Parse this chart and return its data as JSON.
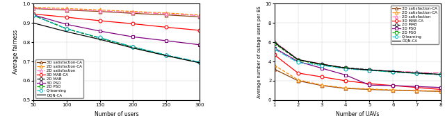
{
  "left": {
    "xlabel": "Number of users",
    "ylabel": "Average fairness",
    "xlim": [
      50,
      300
    ],
    "ylim": [
      0.5,
      1.0
    ],
    "xticks": [
      50,
      100,
      150,
      200,
      250,
      300
    ],
    "yticks": [
      0.5,
      0.6,
      0.7,
      0.8,
      0.9,
      1.0
    ],
    "series": [
      {
        "label": "3D satisfaction-CA",
        "x": [
          50,
          100,
          150,
          200,
          250,
          300
        ],
        "y": [
          0.975,
          0.967,
          0.96,
          0.95,
          0.942,
          0.932
        ],
        "color": "#8B4513",
        "linestyle": "-",
        "marker": "^",
        "markersize": 3.5
      },
      {
        "label": "2D satisfaction-CA",
        "x": [
          50,
          100,
          150,
          200,
          250,
          300
        ],
        "y": [
          0.982,
          0.975,
          0.968,
          0.96,
          0.952,
          0.942
        ],
        "color": "#FF8C00",
        "linestyle": "--",
        "marker": "^",
        "markersize": 3.5
      },
      {
        "label": "2D satisfaction",
        "x": [
          50,
          100,
          150,
          200,
          250,
          300
        ],
        "y": [
          0.977,
          0.97,
          0.963,
          0.955,
          0.948,
          0.938
        ],
        "color": "#FF69B4",
        "linestyle": "-.",
        "marker": "^",
        "markersize": 3.5
      },
      {
        "label": "3D MAB-CA",
        "x": [
          50,
          100,
          150,
          200,
          250,
          300
        ],
        "y": [
          0.947,
          0.93,
          0.912,
          0.896,
          0.878,
          0.862
        ],
        "color": "#FF0000",
        "linestyle": "-",
        "marker": "o",
        "markersize": 3.5
      },
      {
        "label": "2D MAB",
        "x": [
          50,
          100,
          150,
          200,
          250,
          300
        ],
        "y": [
          0.94,
          0.87,
          0.822,
          0.775,
          0.732,
          0.695
        ],
        "color": "#111111",
        "linestyle": "--",
        "marker": "o",
        "markersize": 3.5
      },
      {
        "label": "3D PSO",
        "x": [
          50,
          100,
          150,
          200,
          250,
          300
        ],
        "y": [
          0.942,
          0.893,
          0.858,
          0.828,
          0.808,
          0.787
        ],
        "color": "#800080",
        "linestyle": "-",
        "marker": "s",
        "markersize": 3.5
      },
      {
        "label": "2D PSO",
        "x": [
          50,
          100,
          150,
          200,
          250,
          300
        ],
        "y": [
          0.94,
          0.87,
          0.822,
          0.775,
          0.732,
          0.695
        ],
        "color": "#00AA00",
        "linestyle": "--",
        "marker": "s",
        "markersize": 3.5
      },
      {
        "label": "Q-learning",
        "x": [
          50,
          100,
          150,
          200,
          250,
          300
        ],
        "y": [
          0.94,
          0.87,
          0.824,
          0.776,
          0.734,
          0.697
        ],
        "color": "#00BBCC",
        "linestyle": "-.",
        "marker": "o",
        "markersize": 3.5
      },
      {
        "label": "DQN-CA",
        "x": [
          50,
          100,
          150,
          200,
          250,
          300
        ],
        "y": [
          0.9,
          0.855,
          0.815,
          0.77,
          0.73,
          0.693
        ],
        "color": "#000000",
        "linestyle": "-",
        "marker": "None",
        "markersize": 0
      }
    ]
  },
  "right": {
    "xlabel": "Number of UAVs",
    "ylabel": "Average number of outage users per BS",
    "xlim": [
      1,
      8
    ],
    "ylim": [
      0,
      10
    ],
    "xticks": [
      1,
      2,
      3,
      4,
      5,
      6,
      7,
      8
    ],
    "yticks": [
      0,
      2,
      4,
      6,
      8,
      10
    ],
    "series": [
      {
        "label": "3D satisfaction-CA",
        "x": [
          1,
          2,
          3,
          4,
          5,
          6,
          7,
          8
        ],
        "y": [
          3.2,
          2.0,
          1.5,
          1.2,
          1.1,
          1.0,
          0.95,
          0.9
        ],
        "color": "#8B4513",
        "linestyle": "-",
        "marker": "^",
        "markersize": 3.5
      },
      {
        "label": "2D satisfaction-CA",
        "x": [
          1,
          2,
          3,
          4,
          5,
          6,
          7,
          8
        ],
        "y": [
          3.6,
          2.1,
          1.55,
          1.25,
          1.15,
          1.05,
          0.98,
          0.92
        ],
        "color": "#FF8C00",
        "linestyle": "--",
        "marker": "^",
        "markersize": 3.5
      },
      {
        "label": "2D satisfaction",
        "x": [
          1,
          2,
          3,
          4,
          5,
          6,
          7,
          8
        ],
        "y": [
          6.1,
          4.2,
          3.75,
          3.3,
          3.1,
          3.0,
          2.9,
          2.82
        ],
        "color": "#FF69B4",
        "linestyle": "-.",
        "marker": "^",
        "markersize": 3.5
      },
      {
        "label": "3D MAB-CA",
        "x": [
          1,
          2,
          3,
          4,
          5,
          6,
          7,
          8
        ],
        "y": [
          4.7,
          2.8,
          2.4,
          2.0,
          1.7,
          1.5,
          1.3,
          1.1
        ],
        "color": "#FF0000",
        "linestyle": "-",
        "marker": "o",
        "markersize": 3.5
      },
      {
        "label": "2D MAB",
        "x": [
          1,
          2,
          3,
          4,
          5,
          6,
          7,
          8
        ],
        "y": [
          5.9,
          4.15,
          3.7,
          3.35,
          3.15,
          2.95,
          2.78,
          2.65
        ],
        "color": "#111111",
        "linestyle": "--",
        "marker": "o",
        "markersize": 3.5
      },
      {
        "label": "3D PSO",
        "x": [
          1,
          2,
          3,
          4,
          5,
          6,
          7,
          8
        ],
        "y": [
          5.4,
          4.0,
          3.3,
          2.6,
          1.55,
          1.5,
          1.4,
          1.3
        ],
        "color": "#800080",
        "linestyle": "-",
        "marker": "s",
        "markersize": 3.5
      },
      {
        "label": "2D PSO",
        "x": [
          1,
          2,
          3,
          4,
          5,
          6,
          7,
          8
        ],
        "y": [
          5.9,
          4.15,
          3.65,
          3.3,
          3.1,
          2.9,
          2.78,
          2.65
        ],
        "color": "#00AA00",
        "linestyle": "--",
        "marker": "s",
        "markersize": 3.5
      },
      {
        "label": "Q-learning",
        "x": [
          1,
          2,
          3,
          4,
          5,
          6,
          7,
          8
        ],
        "y": [
          5.3,
          3.9,
          3.6,
          3.25,
          3.08,
          2.92,
          2.77,
          2.63
        ],
        "color": "#00BBCC",
        "linestyle": "-.",
        "marker": "o",
        "markersize": 3.5
      },
      {
        "label": "DQN-CA",
        "x": [
          1,
          2,
          3,
          4,
          5,
          6,
          7,
          8
        ],
        "y": [
          6.0,
          4.2,
          3.72,
          3.32,
          3.12,
          2.97,
          2.8,
          2.67
        ],
        "color": "#000000",
        "linestyle": "-",
        "marker": "None",
        "markersize": 0
      }
    ]
  },
  "legend_labels": [
    "3D satisfaction-CA",
    "2D satisfaction-CA",
    "2D satisfaction",
    "3D MAB-CA",
    "2D MAB",
    "3D PSO",
    "2D PSO",
    "Q-learning",
    "DQN-CA"
  ],
  "legend_colors": [
    "#8B4513",
    "#FF8C00",
    "#FF69B4",
    "#FF0000",
    "#111111",
    "#800080",
    "#00AA00",
    "#00BBCC",
    "#000000"
  ],
  "legend_linestyles": [
    "-",
    "--",
    "-.",
    "-",
    "--",
    "-",
    "--",
    "-.",
    "-"
  ],
  "legend_markers": [
    "^",
    "^",
    "^",
    "o",
    "o",
    "s",
    "s",
    "o",
    "None"
  ]
}
